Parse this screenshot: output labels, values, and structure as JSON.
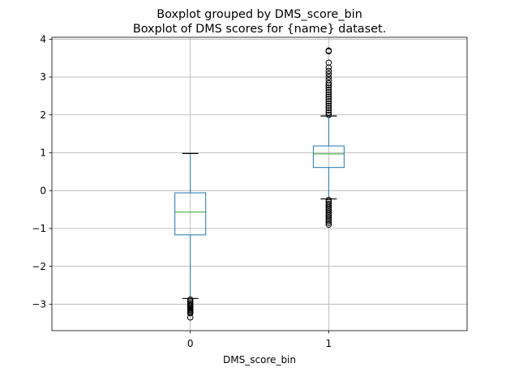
{
  "chart_data": {
    "type": "boxplot",
    "suptitle": "Boxplot grouped by DMS_score_bin",
    "title": "Boxplot of DMS scores for {name} dataset.",
    "xlabel": "DMS_score_bin",
    "ylabel": "",
    "categories": [
      "0",
      "1"
    ],
    "ylim": [
      -3.7,
      4.05
    ],
    "yticks": [
      -3,
      -2,
      -1,
      0,
      1,
      2,
      3,
      4
    ],
    "ytick_labels": [
      "−3",
      "−2",
      "−1",
      "0",
      "1",
      "2",
      "3",
      "4"
    ],
    "grid": true,
    "boxes": [
      {
        "category": "0",
        "whisker_low": -2.85,
        "q1": -1.17,
        "median": -0.57,
        "q3": -0.06,
        "whisker_high": 0.98,
        "outliers": [
          -2.88,
          -2.92,
          -2.96,
          -3.0,
          -3.03,
          -3.06,
          -3.09,
          -3.12,
          -3.15,
          -3.18,
          -3.21,
          -3.24,
          -3.35
        ]
      },
      {
        "category": "1",
        "whisker_low": -0.22,
        "q1": 0.61,
        "median": 0.97,
        "q3": 1.18,
        "whisker_high": 1.97,
        "outliers": [
          2.0,
          2.06,
          2.12,
          2.18,
          2.24,
          2.3,
          2.36,
          2.42,
          2.48,
          2.54,
          2.6,
          2.66,
          2.72,
          2.78,
          2.84,
          2.92,
          3.0,
          3.08,
          3.16,
          3.25,
          3.38,
          3.68,
          3.7,
          -0.25,
          -0.3,
          -0.35,
          -0.4,
          -0.45,
          -0.5,
          -0.55,
          -0.6,
          -0.65,
          -0.7,
          -0.75,
          -0.8,
          -0.85,
          -0.9
        ]
      }
    ],
    "colors": {
      "box": "#1f77b4",
      "median": "#2ca02c",
      "whisker_cap": "#000000",
      "grid": "#b0b0b0",
      "flier": "#000000"
    }
  }
}
